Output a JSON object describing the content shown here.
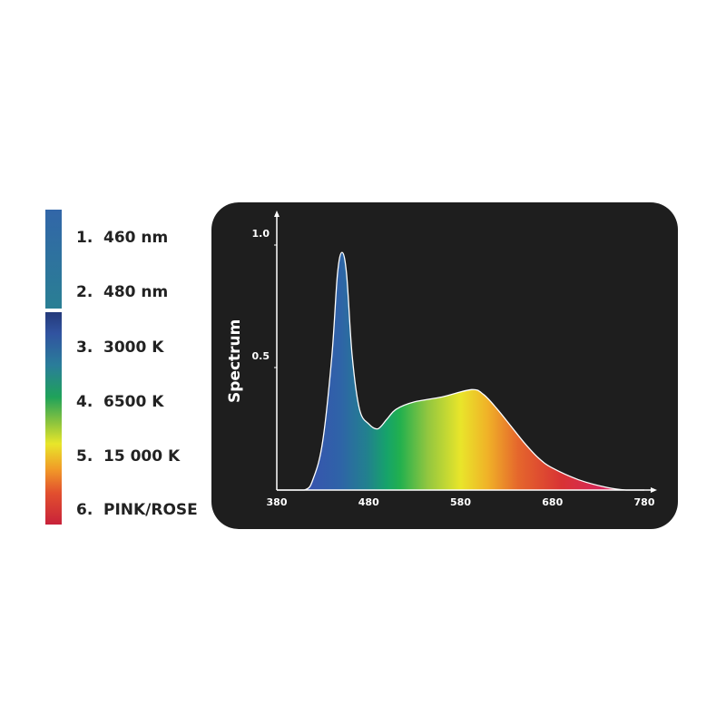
{
  "legend": {
    "items": [
      {
        "num": "1.",
        "label": "460 nm"
      },
      {
        "num": "2.",
        "label": "480 nm"
      },
      {
        "num": "3.",
        "label": "3000 K"
      },
      {
        "num": "4.",
        "label": "6500 K"
      },
      {
        "num": "5.",
        "label": "15 000 K"
      },
      {
        "num": "6.",
        "label": "PINK/ROSE"
      }
    ]
  },
  "chart_data": {
    "type": "area",
    "ylabel": "Spectrum",
    "xlabel": "",
    "xlim": [
      380,
      780
    ],
    "ylim": [
      0,
      1.0
    ],
    "xticks": [
      "380",
      "480",
      "580",
      "680",
      "780"
    ],
    "yticks": [
      "0.5",
      "1.0"
    ],
    "grid": false,
    "background": "#1e1e1e",
    "fill": "visible-spectrum gradient",
    "x": [
      380,
      410,
      420,
      430,
      440,
      446,
      451,
      456,
      462,
      470,
      480,
      490,
      500,
      510,
      530,
      560,
      592,
      605,
      620,
      635,
      650,
      665,
      680,
      710,
      740,
      760,
      780
    ],
    "y": [
      0,
      0,
      0.05,
      0.2,
      0.55,
      0.88,
      0.97,
      0.88,
      0.55,
      0.33,
      0.27,
      0.25,
      0.29,
      0.33,
      0.36,
      0.38,
      0.41,
      0.39,
      0.33,
      0.26,
      0.19,
      0.13,
      0.09,
      0.04,
      0.01,
      0,
      0
    ]
  }
}
